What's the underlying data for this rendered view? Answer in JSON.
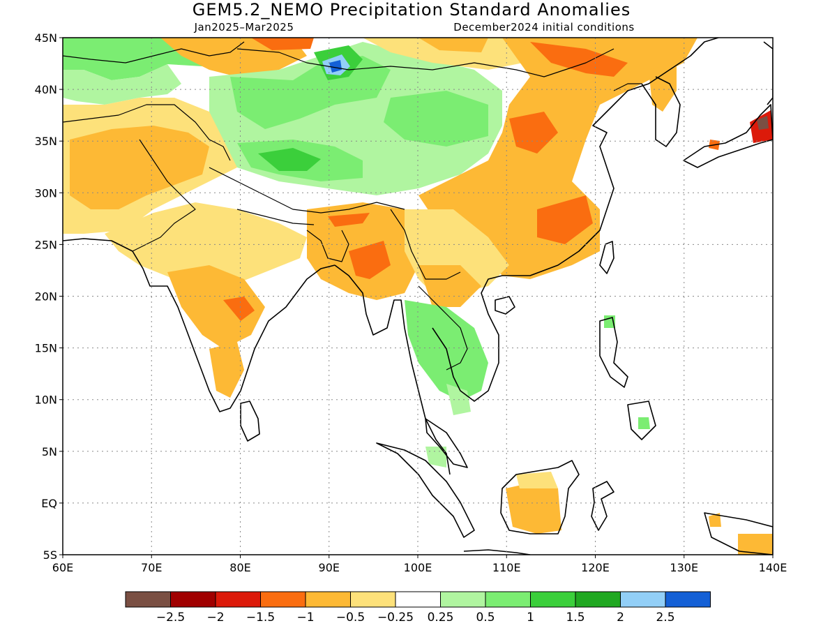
{
  "title": "GEM5.2_NEMO Precipitation Standard Anomalies",
  "subtitle_left": "Jan2025–Mar2025",
  "subtitle_right": "December2024 initial conditions",
  "map": {
    "lon_min": 60,
    "lon_max": 140,
    "lat_min": -5,
    "lat_max": 45,
    "x_tick_labels": [
      "60E",
      "70E",
      "80E",
      "90E",
      "100E",
      "110E",
      "120E",
      "130E",
      "140E"
    ],
    "y_tick_labels": [
      "45N",
      "40N",
      "35N",
      "30N",
      "25N",
      "20N",
      "15N",
      "10N",
      "5N",
      "EQ",
      "5S"
    ],
    "gridlines": "dotted"
  },
  "colorbar": {
    "colors": [
      "#7a4f43",
      "#a00000",
      "#dc1a0a",
      "#fa6d10",
      "#fdb935",
      "#fde17a",
      "#ffffff",
      "#b0f5a0",
      "#7bed72",
      "#3bcf3b",
      "#20a821",
      "#92cff7",
      "#1460d6"
    ],
    "labels": [
      "−2.5",
      "−2",
      "−1.5",
      "−1",
      "−0.5",
      "−0.25",
      "0.25",
      "0.5",
      "1",
      "1.5",
      "2",
      "2.5"
    ]
  }
}
